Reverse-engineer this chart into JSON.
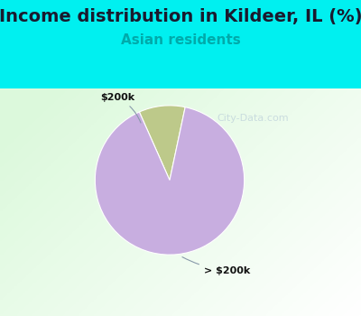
{
  "title": "Income distribution in Kildeer, IL (%)",
  "subtitle": "Asian residents",
  "slices": [
    {
      "label": "$200k",
      "value": 10,
      "color": "#bdc98a"
    },
    {
      "label": "> $200k",
      "value": 90,
      "color": "#c8aee0"
    }
  ],
  "title_fontsize": 14,
  "subtitle_fontsize": 11,
  "title_color": "#1a1a2e",
  "subtitle_color": "#00aaaa",
  "outer_bg_color": "#00f0f0",
  "watermark": "City-Data.com",
  "startangle": 78
}
